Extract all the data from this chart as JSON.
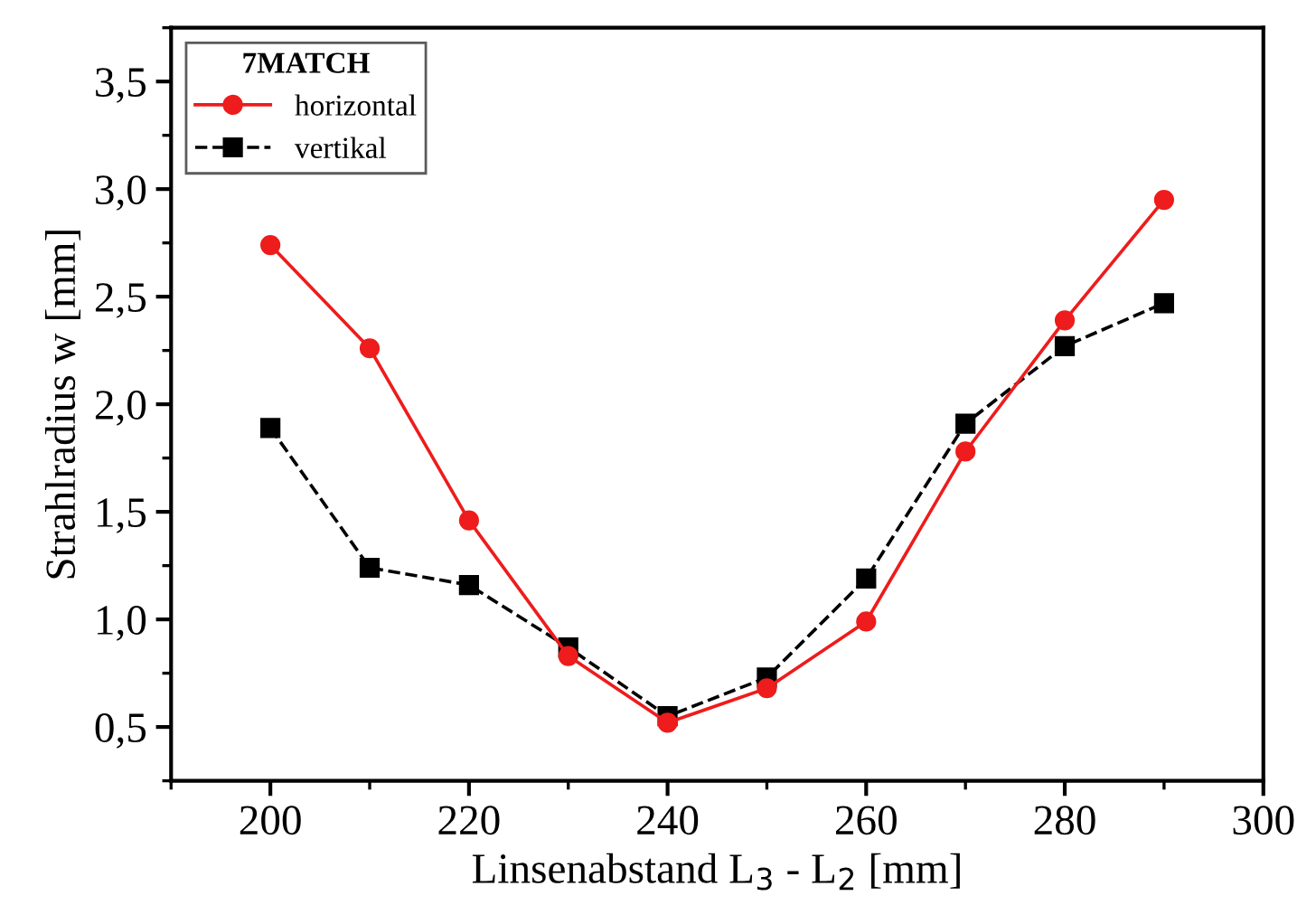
{
  "chart_data": {
    "type": "line",
    "xlabel": "Linsenabstand L$_{3}$ - L$_{2}$ [mm]",
    "ylabel": "Strahlradius w [mm]",
    "legend_title": "7MATCH",
    "legend": "top left",
    "grid": false,
    "x": [
      200,
      210,
      220,
      230,
      240,
      250,
      260,
      270,
      280,
      290
    ],
    "series": [
      {
        "name": "horizontal",
        "color": "#ee1c1c",
        "marker": "circle",
        "line_style": "solid",
        "values": [
          2.74,
          2.26,
          1.46,
          0.83,
          0.52,
          0.68,
          0.99,
          1.78,
          2.39,
          2.95
        ]
      },
      {
        "name": "vertikal",
        "color": "#000000",
        "marker": "square",
        "line_style": "dashed",
        "values": [
          1.89,
          1.24,
          1.16,
          0.87,
          0.55,
          0.73,
          1.19,
          1.91,
          2.27,
          2.47
        ]
      }
    ],
    "xlim": [
      190,
      300
    ],
    "xticks": [
      200,
      220,
      240,
      260,
      280,
      300
    ],
    "ylim": [
      0.25,
      3.75
    ],
    "yticks": [
      {
        "value": 0.5,
        "label": "0,5"
      },
      {
        "value": 1.0,
        "label": "1,0"
      },
      {
        "value": 1.5,
        "label": "1,5"
      },
      {
        "value": 2.0,
        "label": "2,0"
      },
      {
        "value": 2.5,
        "label": "2,5"
      },
      {
        "value": 3.0,
        "label": "3,0"
      },
      {
        "value": 3.5,
        "label": "3,5"
      }
    ]
  }
}
